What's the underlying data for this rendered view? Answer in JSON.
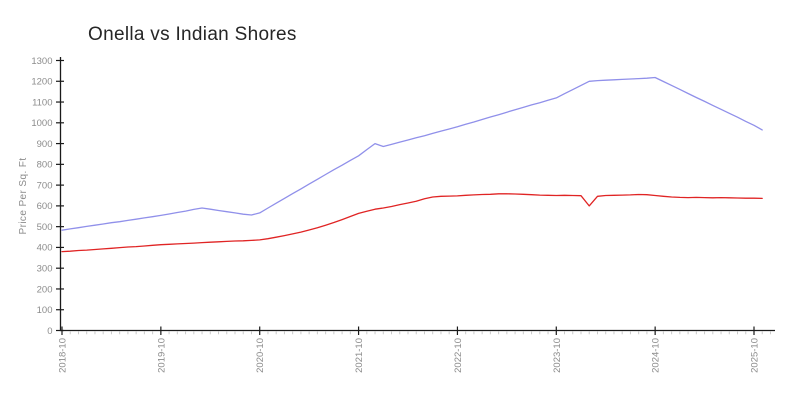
{
  "chart_data": {
    "type": "line",
    "title": "Onella vs Indian Shores",
    "xlabel": "",
    "ylabel": "Price Per Sq. Ft",
    "ylim": [
      0,
      1300
    ],
    "y_ticks": [
      0,
      100,
      200,
      300,
      400,
      500,
      600,
      700,
      800,
      900,
      1000,
      1100,
      1200,
      1300
    ],
    "x_start_month": "2018-10",
    "x_major_interval_months": 12,
    "x_tick_labels": [
      "2018-10",
      "2019-10",
      "2020-10",
      "2021-10",
      "2022-10",
      "2023-10",
      "2024-10",
      "2025-10"
    ],
    "grid": false,
    "legend_position": "none",
    "series": [
      {
        "name": "Onella",
        "color": "#9090ea",
        "values": [
          483,
          489,
          495,
          501,
          507,
          513,
          519,
          524,
          530,
          536,
          542,
          548,
          554,
          561,
          568,
          575,
          583,
          590,
          584,
          578,
          572,
          566,
          560,
          556,
          566,
          590,
          613,
          636,
          659,
          682,
          705,
          728,
          751,
          774,
          796,
          819,
          841,
          871,
          900,
          886,
          896,
          907,
          917,
          928,
          938,
          949,
          960,
          970,
          981,
          993,
          1004,
          1016,
          1028,
          1039,
          1051,
          1063,
          1074,
          1086,
          1097,
          1109,
          1120,
          1140,
          1160,
          1180,
          1200,
          1203,
          1205,
          1207,
          1209,
          1211,
          1213,
          1215,
          1218,
          1199,
          1180,
          1161,
          1141,
          1122,
          1103,
          1084,
          1065,
          1046,
          1027,
          1007,
          988,
          966
        ]
      },
      {
        "name": "Indian Shores",
        "color": "#e02424",
        "values": [
          380,
          382,
          385,
          387,
          390,
          393,
          396,
          399,
          402,
          404,
          407,
          410,
          413,
          415,
          417,
          419,
          421,
          423,
          425,
          427,
          429,
          431,
          432,
          434,
          436,
          442,
          449,
          457,
          465,
          474,
          484,
          495,
          507,
          520,
          534,
          549,
          564,
          574,
          584,
          590,
          597,
          606,
          614,
          622,
          634,
          643,
          646,
          647,
          648,
          651,
          653,
          655,
          656,
          658,
          658,
          657,
          656,
          654,
          652,
          651,
          650,
          651,
          650,
          649,
          600,
          646,
          650,
          651,
          652,
          653,
          655,
          654,
          650,
          646,
          643,
          641,
          640,
          641,
          640,
          639,
          640,
          639,
          638,
          637,
          637,
          636
        ]
      }
    ],
    "colors": {
      "axis": "#1a1a1a",
      "major_tick": "#1a1a1a",
      "minor_tick": "#c9c9c9",
      "tick_label": "#8c8c8c",
      "title": "#262626",
      "background": "#ffffff"
    }
  }
}
